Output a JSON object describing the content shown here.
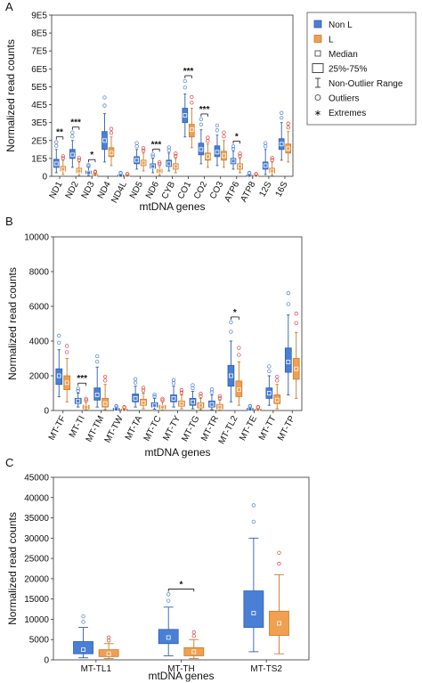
{
  "colors": {
    "nonL": "#4a7fd6",
    "L": "#f0a050",
    "nonL_light": "#7eaaf0",
    "L_light": "#f7c58c",
    "outlierL": "#d94040"
  },
  "legend": {
    "items": [
      {
        "label": "Non L",
        "kind": "nonL"
      },
      {
        "label": "L",
        "kind": "L"
      },
      {
        "label": "Median",
        "kind": "median"
      },
      {
        "label": "25%-75%",
        "kind": "box"
      },
      {
        "label": "Non-Outlier Range",
        "kind": "whisker"
      },
      {
        "label": "Outliers",
        "kind": "outlier"
      },
      {
        "label": "Extremes",
        "kind": "extreme"
      }
    ]
  },
  "chart_data": [
    {
      "type": "box",
      "panel_label": "A",
      "ylabel": "Normalized read counts",
      "xlabel": "mtDNA genes",
      "ylim": [
        0,
        900000
      ],
      "yticks": [
        "0",
        "1E5",
        "2E5",
        "3E5",
        "4E5",
        "5E5",
        "6E5",
        "7E5",
        "8E5",
        "9E5"
      ],
      "categories": [
        "ND1",
        "ND2",
        "ND3",
        "ND4",
        "ND4L",
        "ND5",
        "ND6",
        "CYB",
        "CO1",
        "CO2",
        "CO3",
        "ATP6",
        "ATP8",
        "12S",
        "16S"
      ],
      "series": [
        {
          "name": "Non L",
          "boxes": [
            {
              "q1": 50000,
              "med": 70000,
              "q3": 95000,
              "lo": 20000,
              "hi": 150000
            },
            {
              "q1": 100000,
              "med": 120000,
              "q3": 150000,
              "lo": 50000,
              "hi": 200000
            },
            {
              "q1": 15000,
              "med": 20000,
              "q3": 30000,
              "lo": 5000,
              "hi": 50000
            },
            {
              "q1": 150000,
              "med": 200000,
              "q3": 250000,
              "lo": 80000,
              "hi": 350000
            },
            {
              "q1": 3000,
              "med": 5000,
              "q3": 8000,
              "lo": 1000,
              "hi": 15000
            },
            {
              "q1": 70000,
              "med": 90000,
              "q3": 110000,
              "lo": 40000,
              "hi": 150000
            },
            {
              "q1": 45000,
              "med": 55000,
              "q3": 70000,
              "lo": 20000,
              "hi": 100000
            },
            {
              "q1": 55000,
              "med": 70000,
              "q3": 90000,
              "lo": 30000,
              "hi": 130000
            },
            {
              "q1": 300000,
              "med": 340000,
              "q3": 380000,
              "lo": 220000,
              "hi": 460000
            },
            {
              "q1": 120000,
              "med": 150000,
              "q3": 185000,
              "lo": 70000,
              "hi": 260000
            },
            {
              "q1": 110000,
              "med": 135000,
              "q3": 170000,
              "lo": 60000,
              "hi": 230000
            },
            {
              "q1": 70000,
              "med": 85000,
              "q3": 100000,
              "lo": 40000,
              "hi": 140000
            },
            {
              "q1": 3000,
              "med": 5000,
              "q3": 8000,
              "lo": 1000,
              "hi": 15000
            },
            {
              "q1": 40000,
              "med": 60000,
              "q3": 80000,
              "lo": 10000,
              "hi": 150000
            },
            {
              "q1": 150000,
              "med": 180000,
              "q3": 210000,
              "lo": 90000,
              "hi": 300000
            }
          ]
        },
        {
          "name": "L",
          "boxes": [
            {
              "q1": 30000,
              "med": 40000,
              "q3": 55000,
              "lo": 10000,
              "hi": 90000
            },
            {
              "q1": 20000,
              "med": 30000,
              "q3": 45000,
              "lo": 5000,
              "hi": 80000
            },
            {
              "q1": 5000,
              "med": 8000,
              "q3": 12000,
              "lo": 1000,
              "hi": 20000
            },
            {
              "q1": 110000,
              "med": 130000,
              "q3": 160000,
              "lo": 60000,
              "hi": 220000
            },
            {
              "q1": 2000,
              "med": 3000,
              "q3": 5000,
              "lo": 500,
              "hi": 10000
            },
            {
              "q1": 60000,
              "med": 75000,
              "q3": 90000,
              "lo": 30000,
              "hi": 130000
            },
            {
              "q1": 20000,
              "med": 30000,
              "q3": 40000,
              "lo": 5000,
              "hi": 60000
            },
            {
              "q1": 40000,
              "med": 55000,
              "q3": 70000,
              "lo": 20000,
              "hi": 100000
            },
            {
              "q1": 220000,
              "med": 260000,
              "q3": 290000,
              "lo": 160000,
              "hi": 380000
            },
            {
              "q1": 90000,
              "med": 110000,
              "q3": 130000,
              "lo": 50000,
              "hi": 180000
            },
            {
              "q1": 90000,
              "med": 115000,
              "q3": 140000,
              "lo": 50000,
              "hi": 200000
            },
            {
              "q1": 40000,
              "med": 55000,
              "q3": 70000,
              "lo": 20000,
              "hi": 100000
            },
            {
              "q1": 2000,
              "med": 3000,
              "q3": 5000,
              "lo": 500,
              "hi": 10000
            },
            {
              "q1": 20000,
              "med": 30000,
              "q3": 45000,
              "lo": 5000,
              "hi": 80000
            },
            {
              "q1": 130000,
              "med": 155000,
              "q3": 180000,
              "lo": 80000,
              "hi": 250000
            }
          ]
        }
      ],
      "significance": [
        {
          "category": "ND1",
          "label": "**"
        },
        {
          "category": "ND2",
          "label": "***"
        },
        {
          "category": "ND3",
          "label": "*"
        },
        {
          "category": "ND6",
          "label": "***"
        },
        {
          "category": "CO1",
          "label": "***"
        },
        {
          "category": "CO2",
          "label": "***"
        },
        {
          "category": "ATP6",
          "label": "*"
        }
      ]
    },
    {
      "type": "box",
      "panel_label": "B",
      "ylabel": "Normalized read counts",
      "xlabel": "mtDNA genes",
      "ylim": [
        0,
        10000
      ],
      "yticks": [
        "0",
        "2000",
        "4000",
        "6000",
        "8000",
        "10000"
      ],
      "categories": [
        "MT-TF",
        "MT-TI",
        "MT-TM",
        "MT-TW",
        "MT-TA",
        "MT-TC",
        "MT-TY",
        "MT-TG",
        "MT-TR",
        "MT-TL2",
        "MT-TE",
        "MT-TT",
        "MT-TP"
      ],
      "series": [
        {
          "name": "Non L",
          "boxes": [
            {
              "q1": 1500,
              "med": 2000,
              "q3": 2400,
              "lo": 800,
              "hi": 3500
            },
            {
              "q1": 400,
              "med": 550,
              "q3": 700,
              "lo": 200,
              "hi": 1000
            },
            {
              "q1": 600,
              "med": 900,
              "q3": 1300,
              "lo": 200,
              "hi": 2500
            },
            {
              "q1": 50,
              "med": 80,
              "q3": 120,
              "lo": 20,
              "hi": 200
            },
            {
              "q1": 500,
              "med": 700,
              "q3": 950,
              "lo": 200,
              "hi": 1400
            },
            {
              "q1": 200,
              "med": 300,
              "q3": 450,
              "lo": 80,
              "hi": 700
            },
            {
              "q1": 500,
              "med": 700,
              "q3": 900,
              "lo": 200,
              "hi": 1400
            },
            {
              "q1": 300,
              "med": 500,
              "q3": 700,
              "lo": 100,
              "hi": 1100
            },
            {
              "q1": 200,
              "med": 350,
              "q3": 550,
              "lo": 50,
              "hi": 900
            },
            {
              "q1": 1400,
              "med": 2000,
              "q3": 2600,
              "lo": 500,
              "hi": 4000
            },
            {
              "q1": 50,
              "med": 80,
              "q3": 120,
              "lo": 20,
              "hi": 200
            },
            {
              "q1": 700,
              "med": 1000,
              "q3": 1300,
              "lo": 300,
              "hi": 2000
            },
            {
              "q1": 2200,
              "med": 2800,
              "q3": 3600,
              "lo": 900,
              "hi": 5500
            }
          ]
        },
        {
          "name": "L",
          "boxes": [
            {
              "q1": 1200,
              "med": 1600,
              "q3": 2000,
              "lo": 500,
              "hi": 3000
            },
            {
              "q1": 100,
              "med": 200,
              "q3": 300,
              "lo": 50,
              "hi": 500
            },
            {
              "q1": 200,
              "med": 400,
              "q3": 700,
              "lo": 50,
              "hi": 1500
            },
            {
              "q1": 30,
              "med": 50,
              "q3": 80,
              "lo": 10,
              "hi": 150
            },
            {
              "q1": 300,
              "med": 450,
              "q3": 650,
              "lo": 100,
              "hi": 1000
            },
            {
              "q1": 100,
              "med": 200,
              "q3": 300,
              "lo": 30,
              "hi": 500
            },
            {
              "q1": 250,
              "med": 400,
              "q3": 550,
              "lo": 100,
              "hi": 900
            },
            {
              "q1": 150,
              "med": 300,
              "q3": 450,
              "lo": 50,
              "hi": 700
            },
            {
              "q1": 100,
              "med": 200,
              "q3": 350,
              "lo": 30,
              "hi": 600
            },
            {
              "q1": 800,
              "med": 1200,
              "q3": 1700,
              "lo": 300,
              "hi": 2800
            },
            {
              "q1": 30,
              "med": 50,
              "q3": 80,
              "lo": 10,
              "hi": 150
            },
            {
              "q1": 400,
              "med": 600,
              "q3": 900,
              "lo": 100,
              "hi": 1500
            },
            {
              "q1": 1800,
              "med": 2400,
              "q3": 3000,
              "lo": 700,
              "hi": 4500
            }
          ]
        }
      ],
      "significance": [
        {
          "category": "MT-TI",
          "label": "***"
        },
        {
          "category": "MT-TL2",
          "label": "*"
        }
      ]
    },
    {
      "type": "box",
      "panel_label": "C",
      "ylabel": "Normalized read counts",
      "xlabel": "mtDNA genes",
      "ylim": [
        0,
        45000
      ],
      "yticks": [
        "0",
        "5000",
        "10000",
        "15000",
        "20000",
        "25000",
        "30000",
        "35000",
        "40000",
        "45000"
      ],
      "categories": [
        "MT-TL1",
        "MT-TH",
        "MT-TS2"
      ],
      "series": [
        {
          "name": "Non L",
          "boxes": [
            {
              "q1": 1500,
              "med": 2500,
              "q3": 4500,
              "lo": 500,
              "hi": 8000
            },
            {
              "q1": 4000,
              "med": 5500,
              "q3": 7500,
              "lo": 1000,
              "hi": 13000
            },
            {
              "q1": 8000,
              "med": 11500,
              "q3": 17000,
              "lo": 2000,
              "hi": 30000
            }
          ]
        },
        {
          "name": "L",
          "boxes": [
            {
              "q1": 800,
              "med": 1500,
              "q3": 2500,
              "lo": 300,
              "hi": 4000
            },
            {
              "q1": 1000,
              "med": 2000,
              "q3": 3000,
              "lo": 300,
              "hi": 5000
            },
            {
              "q1": 6000,
              "med": 9000,
              "q3": 12000,
              "lo": 1500,
              "hi": 21000
            }
          ]
        }
      ],
      "significance": [
        {
          "category": "MT-TH",
          "label": "*"
        }
      ]
    }
  ]
}
